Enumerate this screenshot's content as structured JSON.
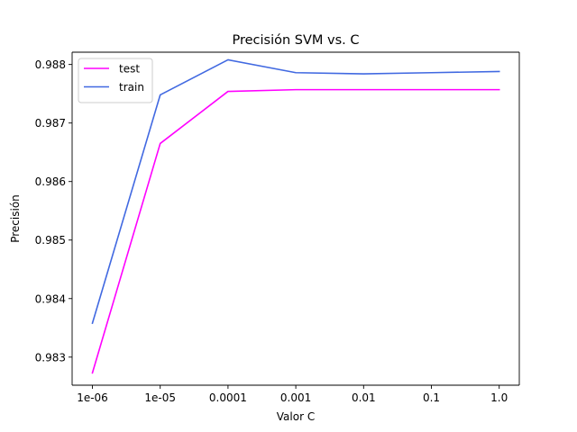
{
  "chart_data": {
    "type": "line",
    "title": "Precisión SVM vs. C",
    "xlabel": "Valor C",
    "ylabel": "Precisión",
    "categories": [
      "1e-06",
      "1e-05",
      "0.0001",
      "0.001",
      "0.01",
      "0.1",
      "1.0"
    ],
    "yticks": [
      0.983,
      0.984,
      0.985,
      0.986,
      0.987,
      0.988
    ],
    "ylim": [
      0.98252,
      0.98821
    ],
    "grid": false,
    "legend_position": "top-left",
    "series": [
      {
        "name": "test",
        "color": "#ff00ff",
        "values": [
          0.98273,
          0.98665,
          0.98754,
          0.98757,
          0.98757,
          0.98757,
          0.98757
        ]
      },
      {
        "name": "train",
        "color": "#4169e1",
        "values": [
          0.98358,
          0.98748,
          0.98808,
          0.98786,
          0.98784,
          0.98786,
          0.98788
        ]
      }
    ]
  }
}
